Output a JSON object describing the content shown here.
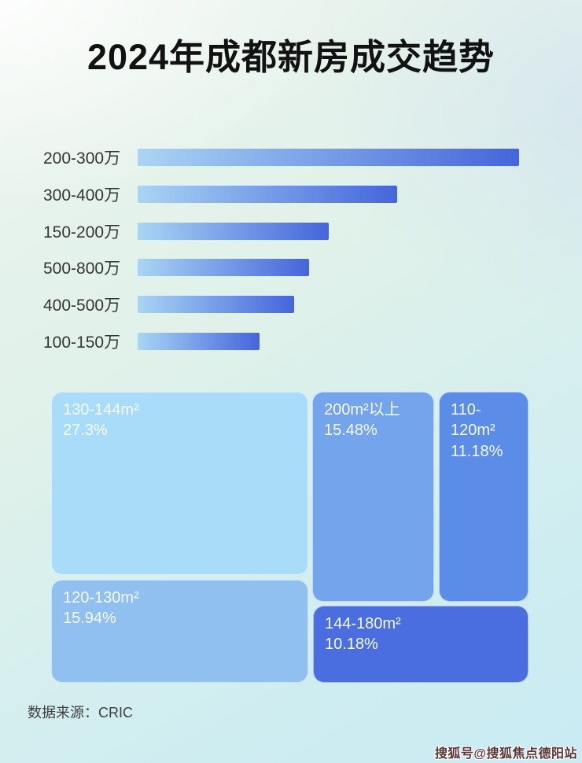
{
  "page": {
    "title": "2024年成都新房成交趋势",
    "footer": "数据来源：CRIC",
    "watermark": "搜狐号@搜狐焦点德阳站"
  },
  "colors": {
    "bar_gradient_start": "#a9d5f4",
    "bar_gradient_end": "#4565db",
    "title_color": "#121212",
    "bar_label_color": "#353535"
  },
  "chart_data": [
    {
      "type": "bar",
      "orientation": "horizontal",
      "title": "2024年成都新房成交趋势",
      "categories": [
        "200-300万",
        "300-400万",
        "150-200万",
        "500-800万",
        "400-500万",
        "100-150万"
      ],
      "lengths_pct": [
        100,
        68,
        50,
        45,
        41,
        32
      ],
      "axis_labels_shown": false,
      "grid": false,
      "legend": false
    },
    {
      "type": "treemap",
      "tiles": [
        {
          "label": "130-144m²",
          "value": "27.3%",
          "color": "#a9dcf8"
        },
        {
          "label": "120-130m²",
          "value": "15.94%",
          "color": "#8fc0f0"
        },
        {
          "label": "200m²以上",
          "value": "15.48%",
          "color": "#74a4ec"
        },
        {
          "label": "110-120m²",
          "value": "11.18%",
          "color": "#5b8ce8"
        },
        {
          "label": "144-180m²",
          "value": "10.18%",
          "color": "#4a6ee0"
        }
      ]
    }
  ]
}
